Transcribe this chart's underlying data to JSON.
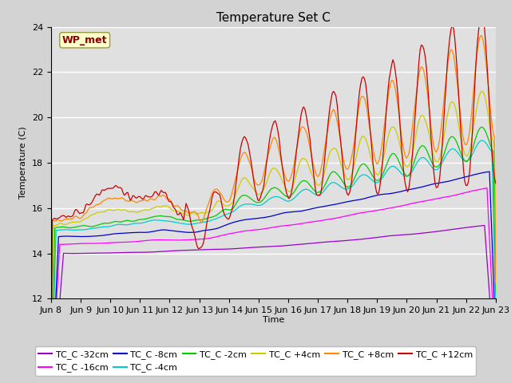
{
  "title": "Temperature Set C",
  "xlabel": "Time",
  "ylabel": "Temperature (C)",
  "ylim": [
    12,
    24
  ],
  "yticks": [
    12,
    14,
    16,
    18,
    20,
    22,
    24
  ],
  "n_days": 15,
  "x_tick_labels": [
    "Jun 8",
    "Jun 9",
    "Jun 10",
    "Jun 11",
    "Jun 12",
    "Jun 13",
    "Jun 14",
    "Jun 15",
    "Jun 16",
    "Jun 17",
    "Jun 18",
    "Jun 19",
    "Jun 20",
    "Jun 21",
    "Jun 22",
    "Jun 23"
  ],
  "series": [
    {
      "label": "TC_C -32cm",
      "color": "#9900cc"
    },
    {
      "label": "TC_C -16cm",
      "color": "#ff00ff"
    },
    {
      "label": "TC_C -8cm",
      "color": "#0000cc"
    },
    {
      "label": "TC_C -4cm",
      "color": "#00cccc"
    },
    {
      "label": "TC_C -2cm",
      "color": "#00cc00"
    },
    {
      "label": "TC_C +4cm",
      "color": "#cccc00"
    },
    {
      "label": "TC_C +8cm",
      "color": "#ff8800"
    },
    {
      "label": "TC_C +12cm",
      "color": "#cc0000"
    }
  ],
  "annotation_text": "WP_met",
  "annotation_color": "#8B0000",
  "annotation_bg": "#ffffcc",
  "annotation_edge": "#999944",
  "background_color": "#d3d3d3",
  "plot_bg": "#e0e0e0",
  "grid_color": "#ffffff",
  "title_fontsize": 11,
  "axis_fontsize": 8,
  "legend_fontsize": 8
}
